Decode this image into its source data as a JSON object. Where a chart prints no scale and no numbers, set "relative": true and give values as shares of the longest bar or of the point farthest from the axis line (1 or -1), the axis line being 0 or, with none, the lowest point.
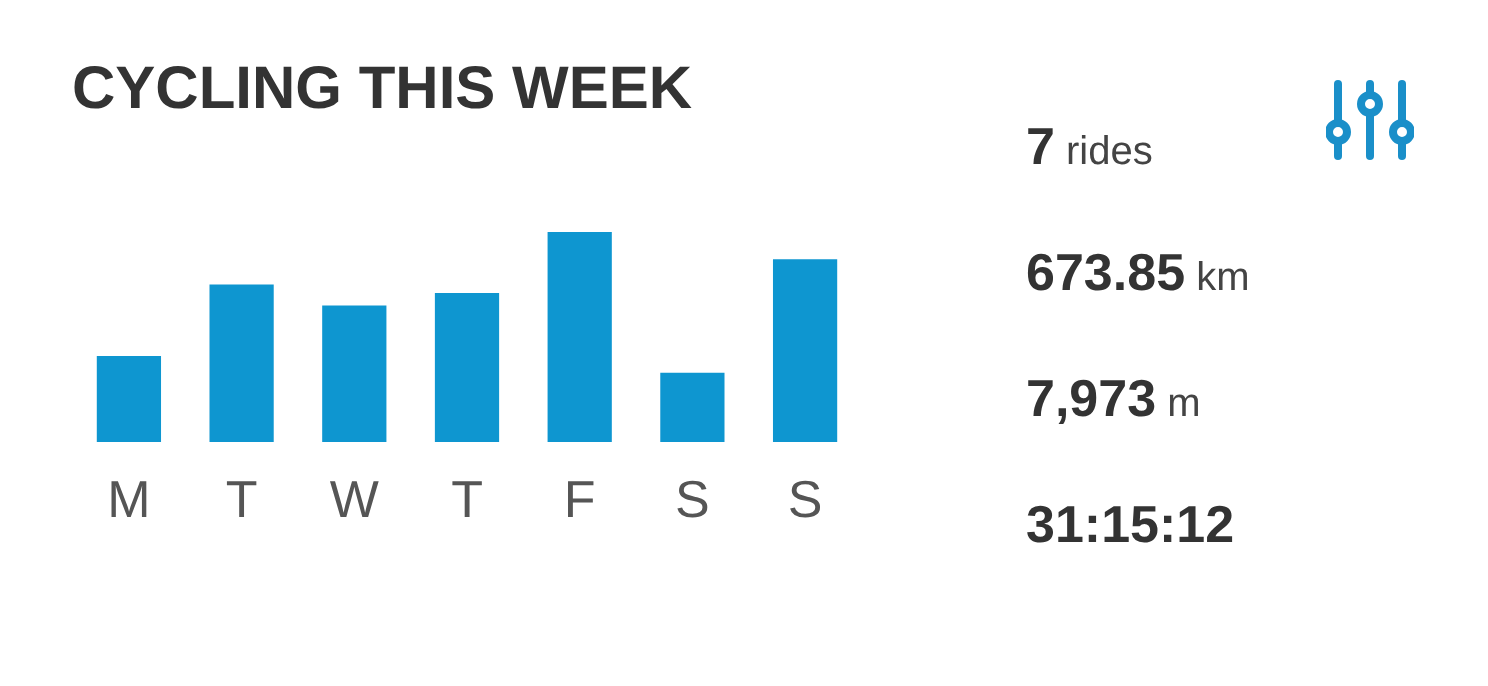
{
  "chart_data": [
    {
      "type": "bar",
      "title": "CYCLING THIS WEEK",
      "categories": [
        "M",
        "T",
        "W",
        "T",
        "F",
        "S",
        "S"
      ],
      "values": [
        0.41,
        0.75,
        0.65,
        0.71,
        1,
        0.33,
        0.87
      ],
      "color": "#0e96d0",
      "relative": true
    },
    {
      "type": "other",
      "annotations": [
        "7 rides",
        "673.85 km",
        "7,973 m",
        "31:15:12"
      ]
    }
  ]
}
